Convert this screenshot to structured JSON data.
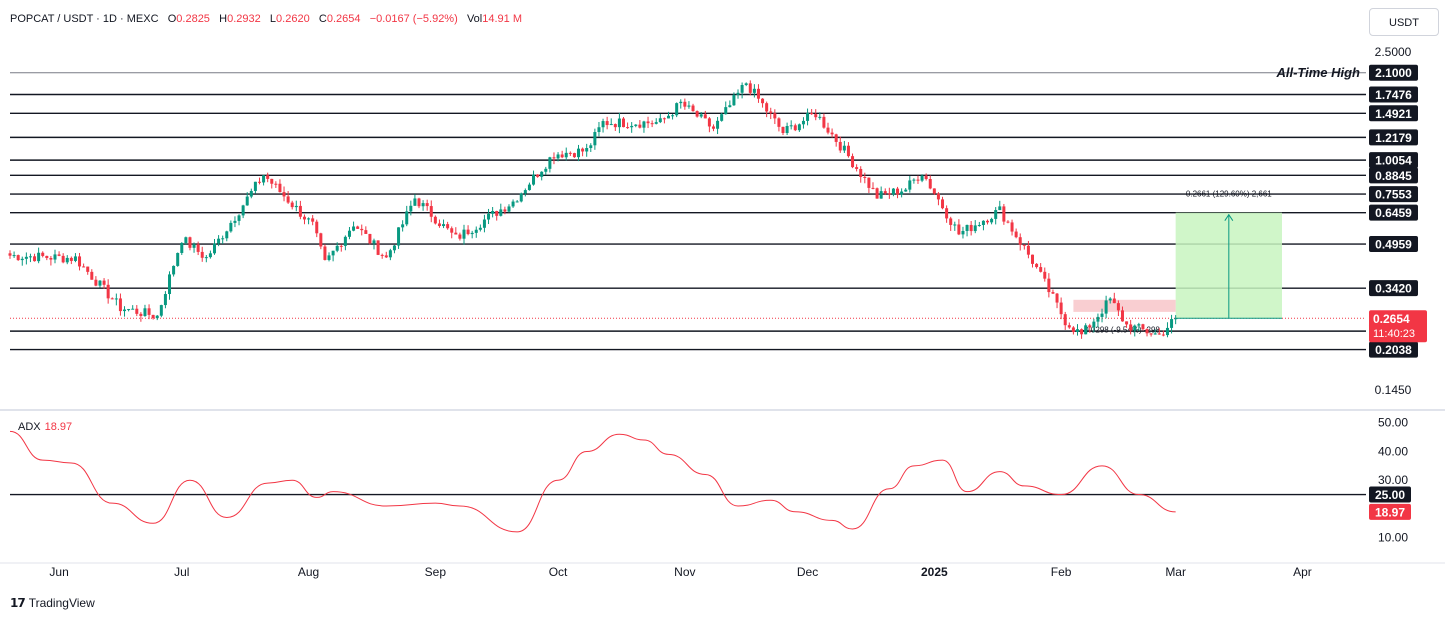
{
  "header": {
    "symbol": "POPCAT / USDT · 1D · MEXC",
    "open_label": "O",
    "open": "0.2825",
    "high_label": "H",
    "high": "0.2932",
    "low_label": "L",
    "low": "0.2620",
    "close_label": "C",
    "close": "0.2654",
    "change": "−0.0167 (−5.92%)",
    "vol_label": "Vol",
    "vol": "14.91 M"
  },
  "currency_button": "USDT",
  "ath_label": "All-Time High",
  "price_axis_ticks": [
    "2.5000",
    "0.1450"
  ],
  "level_labels": [
    "2.1000",
    "1.7476",
    "1.4921",
    "1.2179",
    "1.0054",
    "0.8845",
    "0.7553",
    "0.6459",
    "0.4959",
    "0.3420",
    "0.2381",
    "0.2038"
  ],
  "last_price": "0.2654",
  "countdown": "11:40:23",
  "measure_label": "0.2661 (129.60%) 2,661",
  "lower_measure_label": "-0.0298 (-9.54%) -298",
  "time_axis": [
    "Jun",
    "Jul",
    "Aug",
    "Sep",
    "Oct",
    "Nov",
    "Dec",
    "2025",
    "Feb",
    "Mar",
    "Apr"
  ],
  "indicator": {
    "name": "ADX",
    "value": "18.97"
  },
  "adx_axis_ticks": [
    "50.00",
    "40.00",
    "30.00",
    "10.00"
  ],
  "adx_level_label": "25.00",
  "brand": "TradingView",
  "colors": {
    "up": "#089981",
    "down": "#f23645",
    "adx": "#f23645",
    "target_zone": "#c8f5c0",
    "stop_zone": "#f8c9cc"
  },
  "chart_data": [
    {
      "type": "candlestick",
      "title": "POPCAT / USDT · 1D · MEXC",
      "scale": "log",
      "ylim": [
        0.145,
        2.5
      ],
      "x_ticks": [
        "Jun",
        "Jul",
        "Aug",
        "Sep",
        "Oct",
        "Nov",
        "Dec",
        "2025",
        "Feb",
        "Mar",
        "Apr"
      ],
      "closes_keypoints": [
        {
          "date": "2024-05-20",
          "close": 0.45
        },
        {
          "date": "2024-06-05",
          "close": 0.44
        },
        {
          "date": "2024-06-16",
          "close": 0.29
        },
        {
          "date": "2024-06-25",
          "close": 0.27
        },
        {
          "date": "2024-07-01",
          "close": 0.52
        },
        {
          "date": "2024-07-07",
          "close": 0.44
        },
        {
          "date": "2024-07-21",
          "close": 0.89
        },
        {
          "date": "2024-08-02",
          "close": 0.58
        },
        {
          "date": "2024-08-05",
          "close": 0.42
        },
        {
          "date": "2024-08-12",
          "close": 0.59
        },
        {
          "date": "2024-08-20",
          "close": 0.44
        },
        {
          "date": "2024-08-27",
          "close": 0.73
        },
        {
          "date": "2024-09-06",
          "close": 0.52
        },
        {
          "date": "2024-09-20",
          "close": 0.71
        },
        {
          "date": "2024-09-30",
          "close": 1.06
        },
        {
          "date": "2024-10-08",
          "close": 1.09
        },
        {
          "date": "2024-10-12",
          "close": 1.38
        },
        {
          "date": "2024-10-26",
          "close": 1.38
        },
        {
          "date": "2024-10-31",
          "close": 1.62
        },
        {
          "date": "2024-11-08",
          "close": 1.31
        },
        {
          "date": "2024-11-16",
          "close": 1.93
        },
        {
          "date": "2024-11-25",
          "close": 1.27
        },
        {
          "date": "2024-12-03",
          "close": 1.49
        },
        {
          "date": "2024-12-10",
          "close": 1.09
        },
        {
          "date": "2024-12-18",
          "close": 0.74
        },
        {
          "date": "2024-12-25",
          "close": 0.79
        },
        {
          "date": "2024-12-29",
          "close": 0.91
        },
        {
          "date": "2025-01-07",
          "close": 0.54
        },
        {
          "date": "2025-01-17",
          "close": 0.66
        },
        {
          "date": "2025-01-25",
          "close": 0.43
        },
        {
          "date": "2025-02-02",
          "close": 0.26
        },
        {
          "date": "2025-02-06",
          "close": 0.23
        },
        {
          "date": "2025-02-13",
          "close": 0.31
        },
        {
          "date": "2025-02-17",
          "close": 0.25
        },
        {
          "date": "2025-02-25",
          "close": 0.23
        },
        {
          "date": "2025-03-01",
          "close": 0.2654
        }
      ],
      "horizontal_levels": [
        2.1,
        1.7476,
        1.4921,
        1.2179,
        1.0054,
        0.8845,
        0.7553,
        0.6459,
        0.4959,
        0.342,
        0.2381,
        0.2038
      ],
      "last_price": 0.2654,
      "long_position": {
        "entry": 0.2654,
        "target": 0.6459,
        "stop": 0.342,
        "start": "2025-03-01",
        "end": "2025-03-27"
      }
    },
    {
      "type": "line",
      "series": [
        {
          "name": "ADX",
          "points": [
            {
              "date": "2024-05-20",
              "value": 47
            },
            {
              "date": "2024-05-28",
              "value": 37
            },
            {
              "date": "2024-06-04",
              "value": 36
            },
            {
              "date": "2024-06-14",
              "value": 22
            },
            {
              "date": "2024-06-24",
              "value": 15
            },
            {
              "date": "2024-07-03",
              "value": 30
            },
            {
              "date": "2024-07-12",
              "value": 17
            },
            {
              "date": "2024-07-22",
              "value": 29
            },
            {
              "date": "2024-07-28",
              "value": 30
            },
            {
              "date": "2024-08-03",
              "value": 24
            },
            {
              "date": "2024-08-07",
              "value": 26
            },
            {
              "date": "2024-08-20",
              "value": 21
            },
            {
              "date": "2024-09-01",
              "value": 22
            },
            {
              "date": "2024-09-07",
              "value": 21
            },
            {
              "date": "2024-09-21",
              "value": 12
            },
            {
              "date": "2024-10-01",
              "value": 30
            },
            {
              "date": "2024-10-08",
              "value": 40
            },
            {
              "date": "2024-10-16",
              "value": 46
            },
            {
              "date": "2024-10-22",
              "value": 44
            },
            {
              "date": "2024-10-28",
              "value": 39
            },
            {
              "date": "2024-11-06",
              "value": 32
            },
            {
              "date": "2024-11-14",
              "value": 21
            },
            {
              "date": "2024-11-22",
              "value": 23
            },
            {
              "date": "2024-11-28",
              "value": 19
            },
            {
              "date": "2024-12-07",
              "value": 16
            },
            {
              "date": "2024-12-12",
              "value": 13
            },
            {
              "date": "2024-12-21",
              "value": 27
            },
            {
              "date": "2024-12-27",
              "value": 35
            },
            {
              "date": "2025-01-03",
              "value": 37
            },
            {
              "date": "2025-01-09",
              "value": 26
            },
            {
              "date": "2025-01-17",
              "value": 33
            },
            {
              "date": "2025-01-23",
              "value": 28
            },
            {
              "date": "2025-02-01",
              "value": 25
            },
            {
              "date": "2025-02-11",
              "value": 35
            },
            {
              "date": "2025-02-20",
              "value": 25
            },
            {
              "date": "2025-03-01",
              "value": 18.97
            }
          ]
        }
      ],
      "ylim": [
        5,
        52
      ],
      "horizontal_levels": [
        25
      ],
      "last_value": 18.97
    }
  ]
}
